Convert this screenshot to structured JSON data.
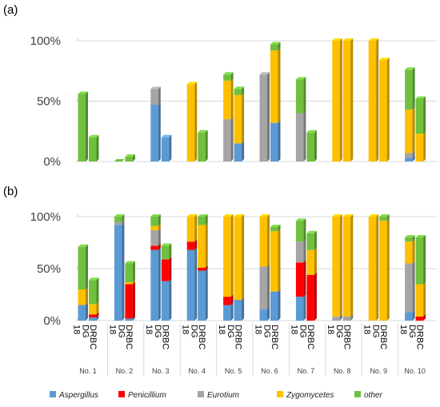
{
  "panel_labels": [
    "(a)",
    "(b)"
  ],
  "legend": [
    {
      "label": "Aspergillus",
      "color": "#5B9BD5",
      "italic": true
    },
    {
      "label": "Penicillium",
      "color": "#FF0000",
      "italic": true
    },
    {
      "label": "Eurotium",
      "color": "#A5A5A5",
      "italic": true
    },
    {
      "label": "Zygomycetes",
      "color": "#FFC000",
      "italic": true
    },
    {
      "label": "other",
      "color": "#70C040",
      "italic": true
    }
  ],
  "y_ticks": [
    "0%",
    "50%",
    "100%"
  ],
  "media": [
    "DG 18",
    "DRBC"
  ],
  "chart_data": [
    {
      "type": "bar",
      "stacked": true,
      "panel": "(a)",
      "ylim": [
        0,
        100
      ],
      "y_ticks": [
        0,
        50,
        100
      ],
      "groups": [
        "No. 1",
        "No. 2",
        "No. 3",
        "No. 4",
        "No. 5",
        "No. 6",
        "No. 7",
        "No. 8",
        "No. 9",
        "No. 10"
      ],
      "media": [
        "DG 18",
        "DRBC"
      ],
      "series_order": [
        "Aspergillus",
        "Penicillium",
        "Eurotium",
        "Zygomycetes",
        "other"
      ],
      "bars": [
        {
          "group": "No. 1",
          "medium": "DG 18",
          "values": [
            0,
            0,
            0,
            0,
            56
          ]
        },
        {
          "group": "No. 1",
          "medium": "DRBC",
          "values": [
            0,
            0,
            0,
            0,
            20
          ]
        },
        {
          "group": "No. 2",
          "medium": "DG 18",
          "values": [
            0,
            0,
            0,
            0,
            0
          ]
        },
        {
          "group": "No. 2",
          "medium": "DRBC",
          "values": [
            0,
            0,
            0,
            0,
            4
          ]
        },
        {
          "group": "No. 3",
          "medium": "DG 18",
          "values": [
            47,
            0,
            13,
            0,
            0
          ]
        },
        {
          "group": "No. 3",
          "medium": "DRBC",
          "values": [
            20,
            0,
            0,
            0,
            0
          ]
        },
        {
          "group": "No. 4",
          "medium": "DG 18",
          "values": [
            0,
            0,
            0,
            64,
            0
          ]
        },
        {
          "group": "No. 4",
          "medium": "DRBC",
          "values": [
            0,
            0,
            0,
            0,
            24
          ]
        },
        {
          "group": "No. 5",
          "medium": "DG 18",
          "values": [
            0,
            0,
            35,
            32,
            5
          ]
        },
        {
          "group": "No. 5",
          "medium": "DRBC",
          "values": [
            15,
            0,
            0,
            40,
            5
          ]
        },
        {
          "group": "No. 6",
          "medium": "DG 18",
          "values": [
            0,
            0,
            72,
            0,
            0
          ]
        },
        {
          "group": "No. 6",
          "medium": "DRBC",
          "values": [
            32,
            0,
            0,
            60,
            5
          ]
        },
        {
          "group": "No. 7",
          "medium": "DG 18",
          "values": [
            0,
            0,
            40,
            0,
            28
          ]
        },
        {
          "group": "No. 7",
          "medium": "DRBC",
          "values": [
            0,
            0,
            0,
            0,
            24
          ]
        },
        {
          "group": "No. 8",
          "medium": "DG 18",
          "values": [
            0,
            0,
            0,
            100,
            0
          ]
        },
        {
          "group": "No. 8",
          "medium": "DRBC",
          "values": [
            0,
            0,
            0,
            100,
            0
          ]
        },
        {
          "group": "No. 9",
          "medium": "DG 18",
          "values": [
            0,
            0,
            0,
            100,
            0
          ]
        },
        {
          "group": "No. 9",
          "medium": "DRBC",
          "values": [
            0,
            0,
            0,
            84,
            0
          ]
        },
        {
          "group": "No. 10",
          "medium": "DG 18",
          "values": [
            3,
            0,
            4,
            36,
            33
          ]
        },
        {
          "group": "No. 10",
          "medium": "DRBC",
          "values": [
            0,
            0,
            0,
            23,
            29
          ]
        }
      ]
    },
    {
      "type": "bar",
      "stacked": true,
      "panel": "(b)",
      "ylim": [
        0,
        100
      ],
      "y_ticks": [
        0,
        50,
        100
      ],
      "groups": [
        "No. 1",
        "No. 2",
        "No. 3",
        "No. 4",
        "No. 5",
        "No. 6",
        "No. 7",
        "No. 8",
        "No. 9",
        "No. 10"
      ],
      "media": [
        "DG 18",
        "DRBC"
      ],
      "series_order": [
        "Aspergillus",
        "Penicillium",
        "Eurotium",
        "Zygomycetes",
        "other"
      ],
      "bars": [
        {
          "group": "No. 1",
          "medium": "DG 18",
          "values": [
            15,
            0,
            0,
            15,
            41
          ]
        },
        {
          "group": "No. 1",
          "medium": "DRBC",
          "values": [
            3,
            3,
            0,
            10,
            23
          ]
        },
        {
          "group": "No. 2",
          "medium": "DG 18",
          "values": [
            92,
            0,
            3,
            0,
            5
          ]
        },
        {
          "group": "No. 2",
          "medium": "DRBC",
          "values": [
            2,
            33,
            0,
            2,
            18
          ]
        },
        {
          "group": "No. 3",
          "medium": "DG 18",
          "values": [
            68,
            4,
            15,
            4,
            9
          ]
        },
        {
          "group": "No. 3",
          "medium": "DRBC",
          "values": [
            38,
            21,
            0,
            0,
            13
          ]
        },
        {
          "group": "No. 4",
          "medium": "DG 18",
          "values": [
            68,
            8,
            0,
            24,
            0
          ]
        },
        {
          "group": "No. 4",
          "medium": "DRBC",
          "values": [
            48,
            3,
            0,
            41,
            8
          ]
        },
        {
          "group": "No. 5",
          "medium": "DG 18",
          "values": [
            15,
            8,
            0,
            77,
            0
          ]
        },
        {
          "group": "No. 5",
          "medium": "DRBC",
          "values": [
            20,
            0,
            0,
            80,
            0
          ]
        },
        {
          "group": "No. 6",
          "medium": "DG 18",
          "values": [
            11,
            0,
            41,
            48,
            0
          ]
        },
        {
          "group": "No. 6",
          "medium": "DRBC",
          "values": [
            28,
            0,
            0,
            58,
            4
          ]
        },
        {
          "group": "No. 7",
          "medium": "DG 18",
          "values": [
            23,
            33,
            20,
            0,
            20
          ]
        },
        {
          "group": "No. 7",
          "medium": "DRBC",
          "values": [
            0,
            44,
            0,
            24,
            16
          ]
        },
        {
          "group": "No. 8",
          "medium": "DG 18",
          "values": [
            0,
            0,
            4,
            96,
            0
          ]
        },
        {
          "group": "No. 8",
          "medium": "DRBC",
          "values": [
            0,
            0,
            4,
            96,
            0
          ]
        },
        {
          "group": "No. 9",
          "medium": "DG 18",
          "values": [
            0,
            0,
            0,
            100,
            0
          ]
        },
        {
          "group": "No. 9",
          "medium": "DRBC",
          "values": [
            0,
            0,
            0,
            96,
            4
          ]
        },
        {
          "group": "No. 10",
          "medium": "DG 18",
          "values": [
            8,
            0,
            47,
            21,
            4
          ]
        },
        {
          "group": "No. 10",
          "medium": "DRBC",
          "values": [
            0,
            4,
            0,
            31,
            45
          ]
        }
      ]
    }
  ]
}
